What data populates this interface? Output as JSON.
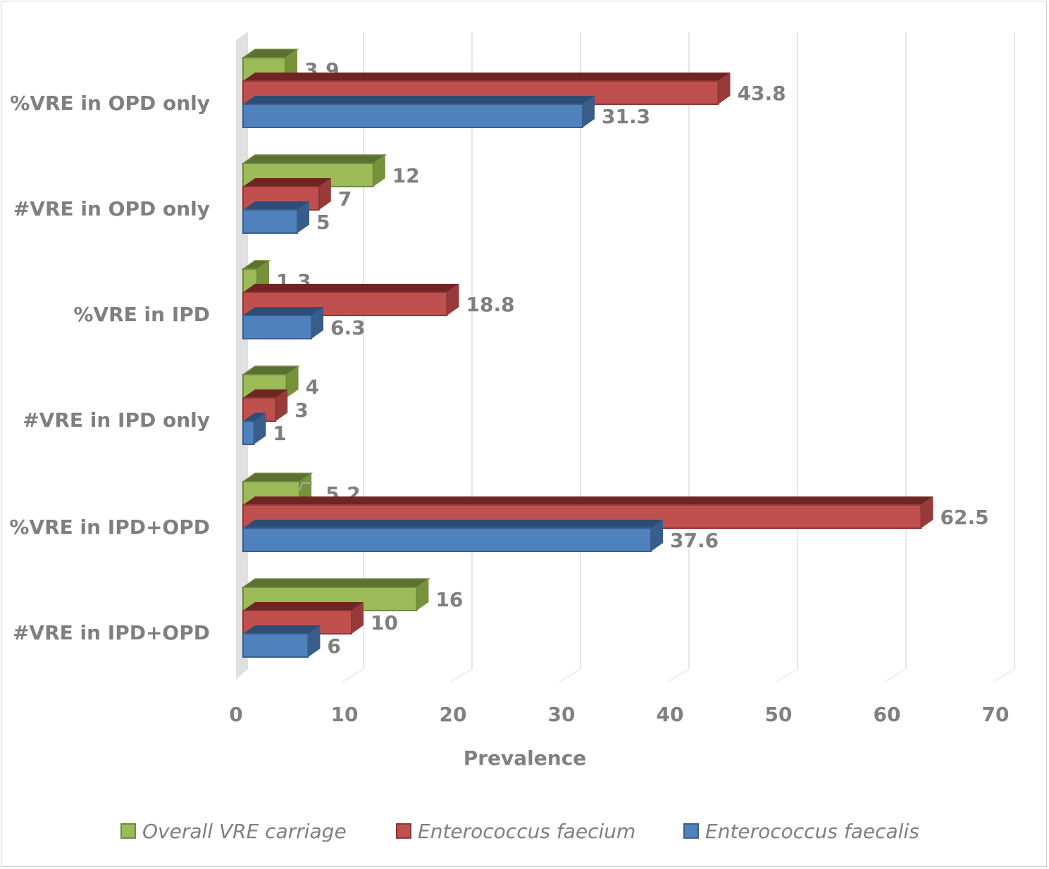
{
  "chart_data": {
    "type": "bar",
    "orientation": "horizontal",
    "style": "3d-clustered",
    "title": "",
    "xlabel": "Prevalence",
    "ylabel": "",
    "xlim": [
      0,
      70
    ],
    "xticks": [
      0,
      10,
      20,
      30,
      40,
      50,
      60,
      70
    ],
    "grid": true,
    "legend_position": "bottom",
    "categories": [
      "%VRE in OPD only",
      "#VRE in OPD only",
      "%VRE in IPD",
      "#VRE in IPD only",
      "%VRE in IPD+OPD",
      "#VRE in IPD+OPD"
    ],
    "series": [
      {
        "name": "Overall VRE carriage",
        "color": "#9BBB59",
        "values": [
          3.9,
          12,
          1.3,
          4,
          5.2,
          16
        ]
      },
      {
        "name": "Enterococcus faecium",
        "color": "#C0504D",
        "values": [
          43.8,
          7,
          18.8,
          3,
          62.5,
          10
        ]
      },
      {
        "name": "Enterococcus faecalis",
        "color": "#4F81BD",
        "values": [
          31.3,
          5,
          6.3,
          1,
          37.6,
          6
        ]
      }
    ],
    "data_labels": [
      [
        "3.9",
        "12",
        "1.3",
        "4",
        "5.2",
        "16"
      ],
      [
        "43.8",
        "7",
        "18.8",
        "3",
        "62.5",
        "10"
      ],
      [
        "31.3",
        "5",
        "6.3",
        "1",
        "37.6",
        "6"
      ]
    ]
  }
}
